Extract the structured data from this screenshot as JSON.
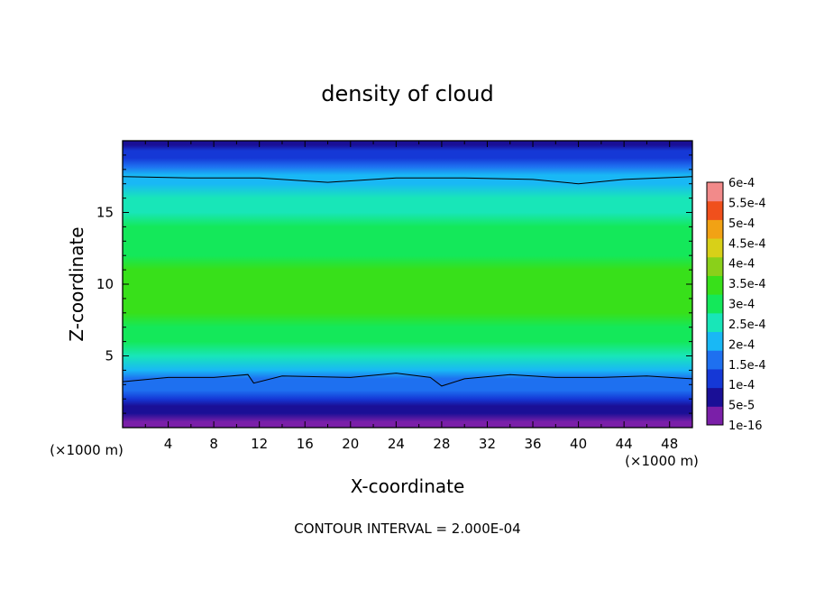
{
  "chart_data": {
    "type": "heatmap",
    "title": "density of cloud",
    "xlabel": "X-coordinate",
    "ylabel": "Z-coordinate",
    "x_unit_left": "(×1000 m)",
    "x_unit_right": "(×1000 m)",
    "footer": "CONTOUR INTERVAL = 2.000E-04",
    "xlim": [
      0,
      50
    ],
    "ylim": [
      0,
      20
    ],
    "x_ticks": [
      4,
      8,
      12,
      16,
      20,
      24,
      28,
      32,
      36,
      40,
      44,
      48
    ],
    "y_ticks": [
      5,
      10,
      15
    ],
    "colorbar": {
      "labels": [
        "1e-16",
        "5e-5",
        "1e-4",
        "1.5e-4",
        "2e-4",
        "2.5e-4",
        "3e-4",
        "3.5e-4",
        "4e-4",
        "4.5e-4",
        "5e-4",
        "5.5e-4",
        "6e-4"
      ],
      "colors": [
        "#7a1fa8",
        "#1a0f96",
        "#1538d6",
        "#1e70f0",
        "#19b8f5",
        "#18e6b8",
        "#14e85a",
        "#38e01a",
        "#8ad01a",
        "#d8d018",
        "#f2a214",
        "#f0501c",
        "#f28a8a"
      ]
    },
    "vertical_profile": [
      {
        "z": 0.4,
        "value": 0.0
      },
      {
        "z": 1.0,
        "value": 4e-05
      },
      {
        "z": 1.5,
        "value": 7e-05
      },
      {
        "z": 2.0,
        "value": 0.0001
      },
      {
        "z": 2.6,
        "value": 0.00013
      },
      {
        "z": 3.4,
        "value": 0.00017
      },
      {
        "z": 4.0,
        "value": 0.00021
      },
      {
        "z": 5.0,
        "value": 0.00025
      },
      {
        "z": 6.0,
        "value": 0.00029
      },
      {
        "z": 7.0,
        "value": 0.00031
      },
      {
        "z": 8.0,
        "value": 0.00033
      },
      {
        "z": 9.0,
        "value": 0.00034
      },
      {
        "z": 10.0,
        "value": 0.00035
      },
      {
        "z": 11.0,
        "value": 0.00034
      },
      {
        "z": 12.0,
        "value": 0.00032
      },
      {
        "z": 13.0,
        "value": 0.0003
      },
      {
        "z": 14.0,
        "value": 0.00028
      },
      {
        "z": 15.0,
        "value": 0.00027
      },
      {
        "z": 16.0,
        "value": 0.00025
      },
      {
        "z": 17.0,
        "value": 0.00022
      },
      {
        "z": 17.6,
        "value": 0.0002
      },
      {
        "z": 18.2,
        "value": 0.00016
      },
      {
        "z": 18.8,
        "value": 0.00012
      },
      {
        "z": 19.3,
        "value": 8e-05
      },
      {
        "z": 19.7,
        "value": 5e-05
      }
    ],
    "contour_lines": [
      {
        "level": 0.0002,
        "points": [
          [
            0,
            3.2
          ],
          [
            4,
            3.5
          ],
          [
            8,
            3.5
          ],
          [
            11,
            3.7
          ],
          [
            11.5,
            3.1
          ],
          [
            14,
            3.6
          ],
          [
            20,
            3.5
          ],
          [
            24,
            3.8
          ],
          [
            27,
            3.5
          ],
          [
            28,
            2.9
          ],
          [
            30,
            3.4
          ],
          [
            34,
            3.7
          ],
          [
            38,
            3.5
          ],
          [
            42,
            3.5
          ],
          [
            46,
            3.6
          ],
          [
            50,
            3.4
          ]
        ]
      },
      {
        "level": 0.0002,
        "points": [
          [
            0,
            17.5
          ],
          [
            6,
            17.4
          ],
          [
            12,
            17.4
          ],
          [
            18,
            17.1
          ],
          [
            24,
            17.4
          ],
          [
            30,
            17.4
          ],
          [
            36,
            17.3
          ],
          [
            40,
            17.0
          ],
          [
            44,
            17.3
          ],
          [
            50,
            17.5
          ]
        ]
      }
    ]
  }
}
